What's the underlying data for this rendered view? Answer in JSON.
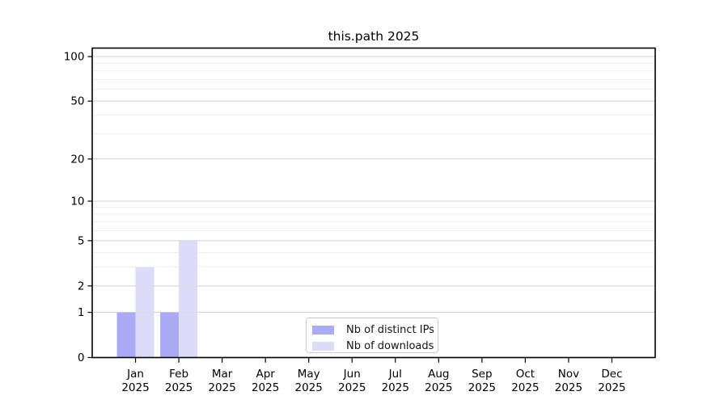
{
  "chart_data": {
    "type": "bar",
    "title": "this.path 2025",
    "categories": [
      "Jan",
      "Feb",
      "Mar",
      "Apr",
      "May",
      "Jun",
      "Jul",
      "Aug",
      "Sep",
      "Oct",
      "Nov",
      "Dec"
    ],
    "x_year_label": "2025",
    "series": [
      {
        "name": "Nb of distinct IPs",
        "color": "#aaaaf5",
        "values": [
          1,
          1,
          0,
          0,
          0,
          0,
          0,
          0,
          0,
          0,
          0,
          0
        ]
      },
      {
        "name": "Nb of downloads",
        "color": "#dcdcf8",
        "values": [
          3,
          5,
          0,
          0,
          0,
          0,
          0,
          0,
          0,
          0,
          0,
          0
        ]
      }
    ],
    "scale": "log1p",
    "ylim": [
      0,
      100
    ],
    "y_ticks": [
      0,
      1,
      2,
      5,
      10,
      20,
      50,
      100
    ],
    "y_minor_gridlines": [
      3,
      4,
      6,
      7,
      8,
      9,
      30,
      40,
      60,
      70,
      80,
      90
    ],
    "grid": true,
    "legend_position": "bottom-center",
    "colors": {
      "background": "#ffffff",
      "axis": "#000000",
      "major_grid": "#d4d4d4",
      "minor_grid": "#efefef"
    }
  }
}
